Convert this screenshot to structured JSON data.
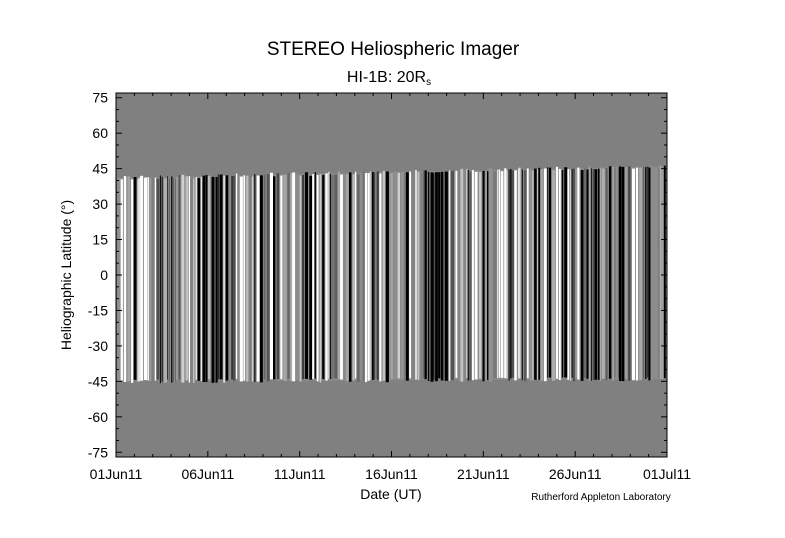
{
  "chart_data": {
    "type": "heatmap",
    "title": "STEREO Heliospheric Imager",
    "subtitle": {
      "main": "HI-1B: 20R",
      "subscript": "s"
    },
    "xlabel": "Date (UT)",
    "ylabel": "Heliographic Latitude (°)",
    "credit": "Rutherford Appleton Laboratory",
    "x_ticks": [
      "01Jun11",
      "06Jun11",
      "11Jun11",
      "16Jun11",
      "21Jun11",
      "26Jun11",
      "01Jul11"
    ],
    "x_range_days": [
      0,
      30
    ],
    "y_ticks": [
      75,
      60,
      45,
      30,
      15,
      0,
      -15,
      -30,
      -45,
      -60,
      -75
    ],
    "ylim": [
      -77,
      77
    ],
    "data_coverage": {
      "upper_latitude_edge_start": 41,
      "upper_latitude_edge_end": 46,
      "lower_latitude_edge_start": -45,
      "lower_latitude_edge_end": -44
    },
    "colors": {
      "no_data": "#808080",
      "background": "#ffffff"
    }
  }
}
